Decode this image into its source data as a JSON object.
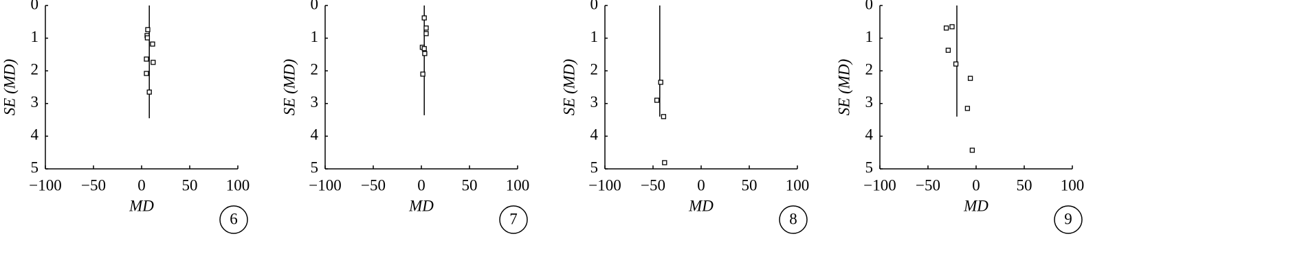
{
  "chart_data": [
    {
      "type": "scatter",
      "panel_label": "6",
      "x_label": "MD",
      "y_label": "SE (MD)",
      "x": [
        6.4,
        5.7,
        6,
        11.4,
        5,
        12,
        5,
        8
      ],
      "series": [
        {
          "name": null,
          "color": "#000000",
          "values": [
            0.74,
            0.92,
            0.99,
            1.18,
            1.64,
            1.74,
            2.08,
            2.65
          ]
        }
      ],
      "funnel_line": {
        "x": 8,
        "y": [
          0,
          3.45
        ]
      },
      "xlim": [
        -100,
        100
      ],
      "ylim": [
        0,
        5
      ],
      "xticks": [
        {
          "value": -100,
          "label": "−100"
        },
        {
          "value": -50,
          "label": "−50"
        },
        0,
        50,
        100
      ],
      "yticks": [
        0,
        1,
        2,
        3,
        4,
        5
      ]
    },
    {
      "type": "scatter",
      "panel_label": "7",
      "x_label": "MD",
      "y_label": "SE (MD)",
      "x": [
        3,
        5,
        5,
        1,
        3,
        3.5,
        1.5
      ],
      "series": [
        {
          "name": null,
          "color": "#000000",
          "values": [
            0.38,
            0.69,
            0.86,
            1.28,
            1.32,
            1.47,
            2.1
          ]
        }
      ],
      "funnel_line": {
        "x": 3,
        "y": [
          0,
          3.36
        ]
      },
      "xlim": [
        -100,
        100
      ],
      "ylim": [
        0,
        5
      ],
      "xticks": [
        {
          "value": -100,
          "label": "−100"
        },
        {
          "value": -50,
          "label": "−50"
        },
        0,
        50,
        100
      ],
      "yticks": [
        0,
        1,
        2,
        3,
        4,
        5
      ]
    },
    {
      "type": "scatter",
      "panel_label": "8",
      "x_label": "MD",
      "y_label": "SE (MD)",
      "x": [
        -42,
        -46,
        -39,
        -38
      ],
      "series": [
        {
          "name": null,
          "color": "#000000",
          "values": [
            2.35,
            2.9,
            3.4,
            4.81
          ]
        }
      ],
      "funnel_line": {
        "x": -43,
        "y": [
          0,
          3.4
        ]
      },
      "xlim": [
        -100,
        100
      ],
      "ylim": [
        0,
        5
      ],
      "xticks": [
        {
          "value": -100,
          "label": "−100"
        },
        {
          "value": -50,
          "label": "−50"
        },
        0,
        50,
        100
      ],
      "yticks": [
        0,
        1,
        2,
        3,
        4,
        5
      ]
    },
    {
      "type": "scatter",
      "panel_label": "9",
      "x_label": "MD",
      "y_label": "SE (MD)",
      "x": [
        -31,
        -25,
        -29,
        -21,
        -6,
        -9,
        -4
      ],
      "series": [
        {
          "name": null,
          "color": "#000000",
          "values": [
            0.69,
            0.65,
            1.37,
            1.79,
            2.23,
            3.15,
            4.43
          ]
        }
      ],
      "funnel_line": {
        "x": -20,
        "y": [
          0,
          3.4
        ]
      },
      "xlim": [
        -100,
        100
      ],
      "ylim": [
        0,
        5
      ],
      "xticks": [
        {
          "value": -100,
          "label": "−100"
        },
        {
          "value": -50,
          "label": "−50"
        },
        0,
        50,
        100
      ],
      "yticks": [
        0,
        1,
        2,
        3,
        4,
        5
      ]
    }
  ]
}
